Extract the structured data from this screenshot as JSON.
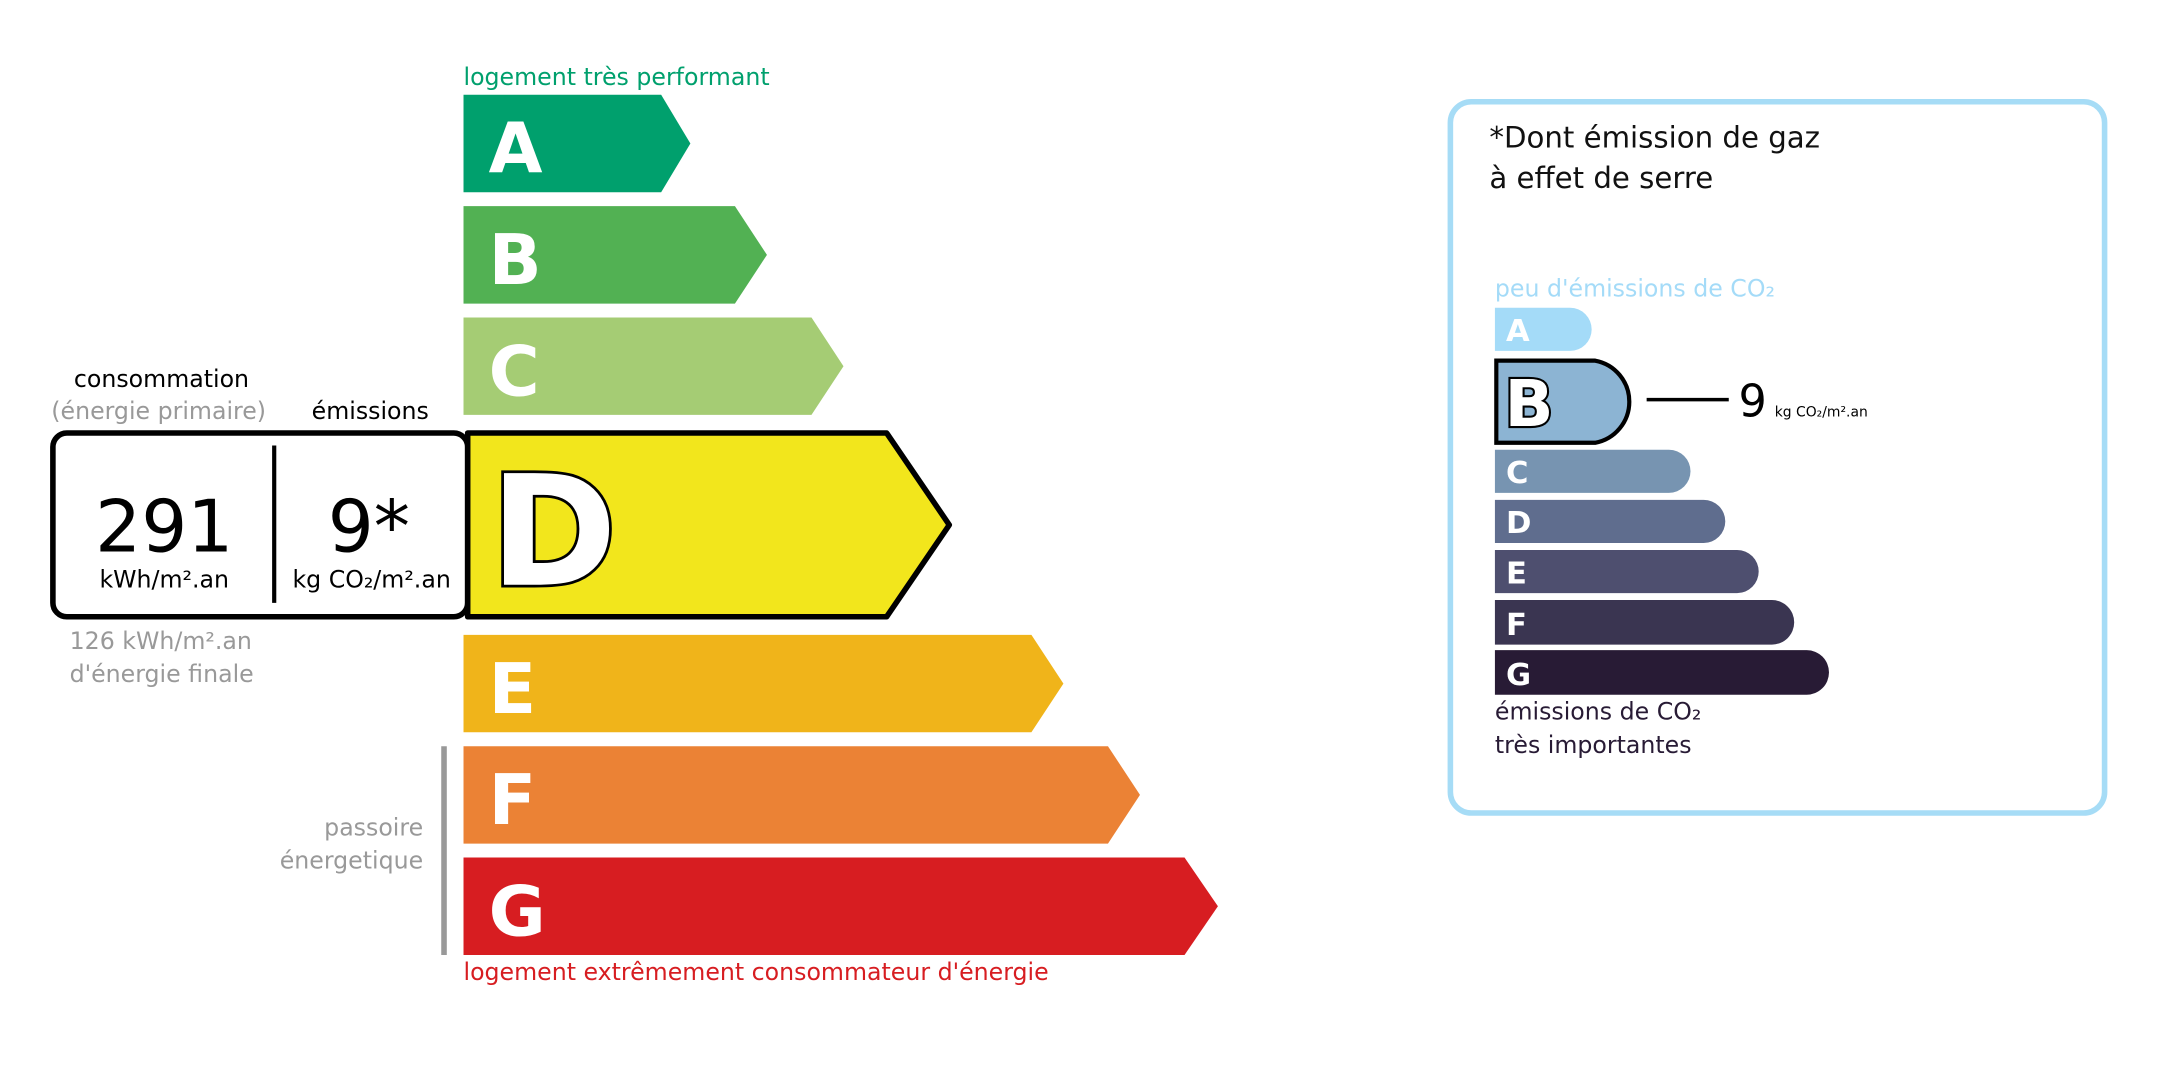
{
  "energy": {
    "top_label": "logement très performant",
    "bottom_label": "logement extrêmement consommateur d'énergie",
    "classes": [
      {
        "letter": "A",
        "color": "#00a06d"
      },
      {
        "letter": "B",
        "color": "#52b153"
      },
      {
        "letter": "C",
        "color": "#a5cc74"
      },
      {
        "letter": "D",
        "color": "#f2e61c"
      },
      {
        "letter": "E",
        "color": "#f0b41a"
      },
      {
        "letter": "F",
        "color": "#eb8235"
      },
      {
        "letter": "G",
        "color": "#d71d21"
      }
    ],
    "current_class": "D",
    "consumption_label": "consommation",
    "consumption_sub": "(énergie primaire)",
    "emissions_label": "émissions",
    "consumption_value": "291",
    "consumption_unit": "kWh/m².an",
    "emissions_value": "9*",
    "emissions_unit": "kg CO₂/m².an",
    "final_energy_value": "126 kWh/m².an",
    "final_energy_label": "d'énergie finale",
    "passoire_line1": "passoire",
    "passoire_line2": "énergetique"
  },
  "ges": {
    "title_line1": "*Dont émission de gaz",
    "title_line2": "à effet de serre",
    "top_label": "peu d'émissions de CO₂",
    "bottom_line1": "émissions de CO₂",
    "bottom_line2": "très importantes",
    "classes": [
      {
        "letter": "A",
        "color": "#a4dbf8"
      },
      {
        "letter": "B",
        "color": "#8cb4d3"
      },
      {
        "letter": "C",
        "color": "#7794b1"
      },
      {
        "letter": "D",
        "color": "#5f6d8e"
      },
      {
        "letter": "E",
        "color": "#4e4f6f"
      },
      {
        "letter": "F",
        "color": "#3a3551"
      },
      {
        "letter": "G",
        "color": "#281b35"
      }
    ],
    "current_class": "B",
    "value": "9",
    "unit": "kg CO₂/m².an",
    "border_color": "#a6dcf6"
  }
}
